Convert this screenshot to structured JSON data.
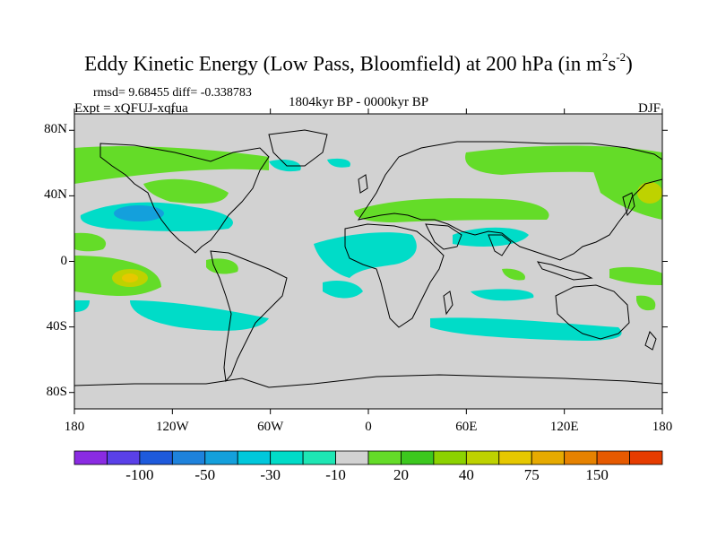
{
  "title_main": "Eddy Kinetic Energy (Low Pass, Bloomfield) at 200 hPa (in m",
  "title_sup1": "2",
  "title_s": "s",
  "title_sup2": "-2",
  "title_close": ")",
  "stats": "rmsd= 9.68455 diff= -0.338783",
  "experiment": "Expt = xQFUJ-xqfua",
  "period": "1804kyr BP - 0000kyr BP",
  "season": "DJF",
  "lat_ticks": [
    {
      "value": 80,
      "label": "80N"
    },
    {
      "value": 40,
      "label": "40N"
    },
    {
      "value": 0,
      "label": "0"
    },
    {
      "value": -40,
      "label": "40S"
    },
    {
      "value": -80,
      "label": "80S"
    }
  ],
  "lon_ticks": [
    {
      "value": -180,
      "label": "180"
    },
    {
      "value": -120,
      "label": "120W"
    },
    {
      "value": -60,
      "label": "60W"
    },
    {
      "value": 0,
      "label": "0"
    },
    {
      "value": 60,
      "label": "60E"
    },
    {
      "value": 120,
      "label": "120E"
    },
    {
      "value": 180,
      "label": "180"
    }
  ],
  "colorbar": {
    "colors": [
      "#8a2be2",
      "#5a40e8",
      "#1e5adc",
      "#1e82dc",
      "#14a0dc",
      "#00c8dc",
      "#00dcc8",
      "#1ee6b4",
      "#d2d2d2",
      "#64dc28",
      "#3cc81e",
      "#8cd200",
      "#bed200",
      "#e6c800",
      "#e6aa00",
      "#e68200",
      "#e65a00",
      "#e63c00"
    ],
    "labels": [
      {
        "after_index": 1,
        "text": "-100"
      },
      {
        "after_index": 3,
        "text": "-50"
      },
      {
        "after_index": 5,
        "text": "-30"
      },
      {
        "after_index": 7,
        "text": "-10"
      },
      {
        "after_index": 9,
        "text": "20"
      },
      {
        "after_index": 11,
        "text": "40"
      },
      {
        "after_index": 13,
        "text": "75"
      },
      {
        "after_index": 15,
        "text": "150"
      }
    ]
  },
  "regions_description": {
    "background_color": "#d2d2d2",
    "positive_color": "#64dc28",
    "negative_color": "#00dcc8"
  }
}
